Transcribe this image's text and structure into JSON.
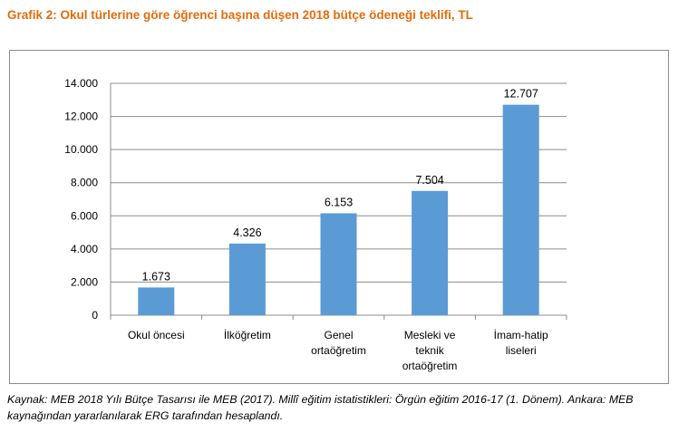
{
  "title": "Grafik 2: Okul türlerine göre öğrenci başına düşen 2018 bütçe ödeneği teklifi, TL",
  "source": "Kaynak: MEB 2018 Yılı Bütçe Tasarısı ile MEB (2017). Millî eğitim istatistikleri: Örgün eğitim 2016-17 (1. Dönem). Ankara: MEB kaynağından yararlanılarak ERG tarafından hesaplandı.",
  "colors": {
    "bar": "#5b9bd5",
    "title": "#e46c0a",
    "grid": "#8c8c8c"
  },
  "chart_data": {
    "type": "bar",
    "categories": [
      [
        "Okul öncesi"
      ],
      [
        "İlköğretim"
      ],
      [
        "Genel",
        "ortaöğretim"
      ],
      [
        "Mesleki ve",
        "teknik",
        "ortaöğretim"
      ],
      [
        "İmam-hatip",
        "liseleri"
      ]
    ],
    "values": [
      1673,
      4326,
      6153,
      7504,
      12707
    ],
    "value_labels": [
      "1.673",
      "4.326",
      "6.153",
      "7.504",
      "12.707"
    ],
    "ylim": [
      0,
      14000
    ],
    "yticks": [
      0,
      2000,
      4000,
      6000,
      8000,
      10000,
      12000,
      14000
    ],
    "ytick_labels": [
      "0",
      "2.000",
      "4.000",
      "6.000",
      "8.000",
      "10.000",
      "12.000",
      "14.000"
    ],
    "grid": true,
    "legend": "none"
  }
}
